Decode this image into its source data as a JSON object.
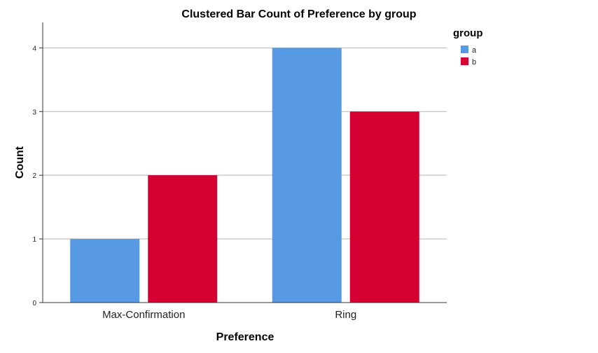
{
  "chart_data": {
    "type": "bar",
    "title": "Clustered Bar Count of Preference by group",
    "xlabel": "Preference",
    "ylabel": "Count",
    "categories": [
      "Max-Confirmation",
      "Ring"
    ],
    "series": [
      {
        "name": "a",
        "values": [
          1,
          4
        ],
        "color": "#5799E3"
      },
      {
        "name": "b",
        "values": [
          2,
          3
        ],
        "color": "#D50032"
      }
    ],
    "ylim": [
      0,
      4.4
    ],
    "yticks": [
      "0",
      "1",
      "2",
      "3",
      "4"
    ],
    "grid": true,
    "legend": {
      "title": "group",
      "placement": "top-right"
    }
  }
}
